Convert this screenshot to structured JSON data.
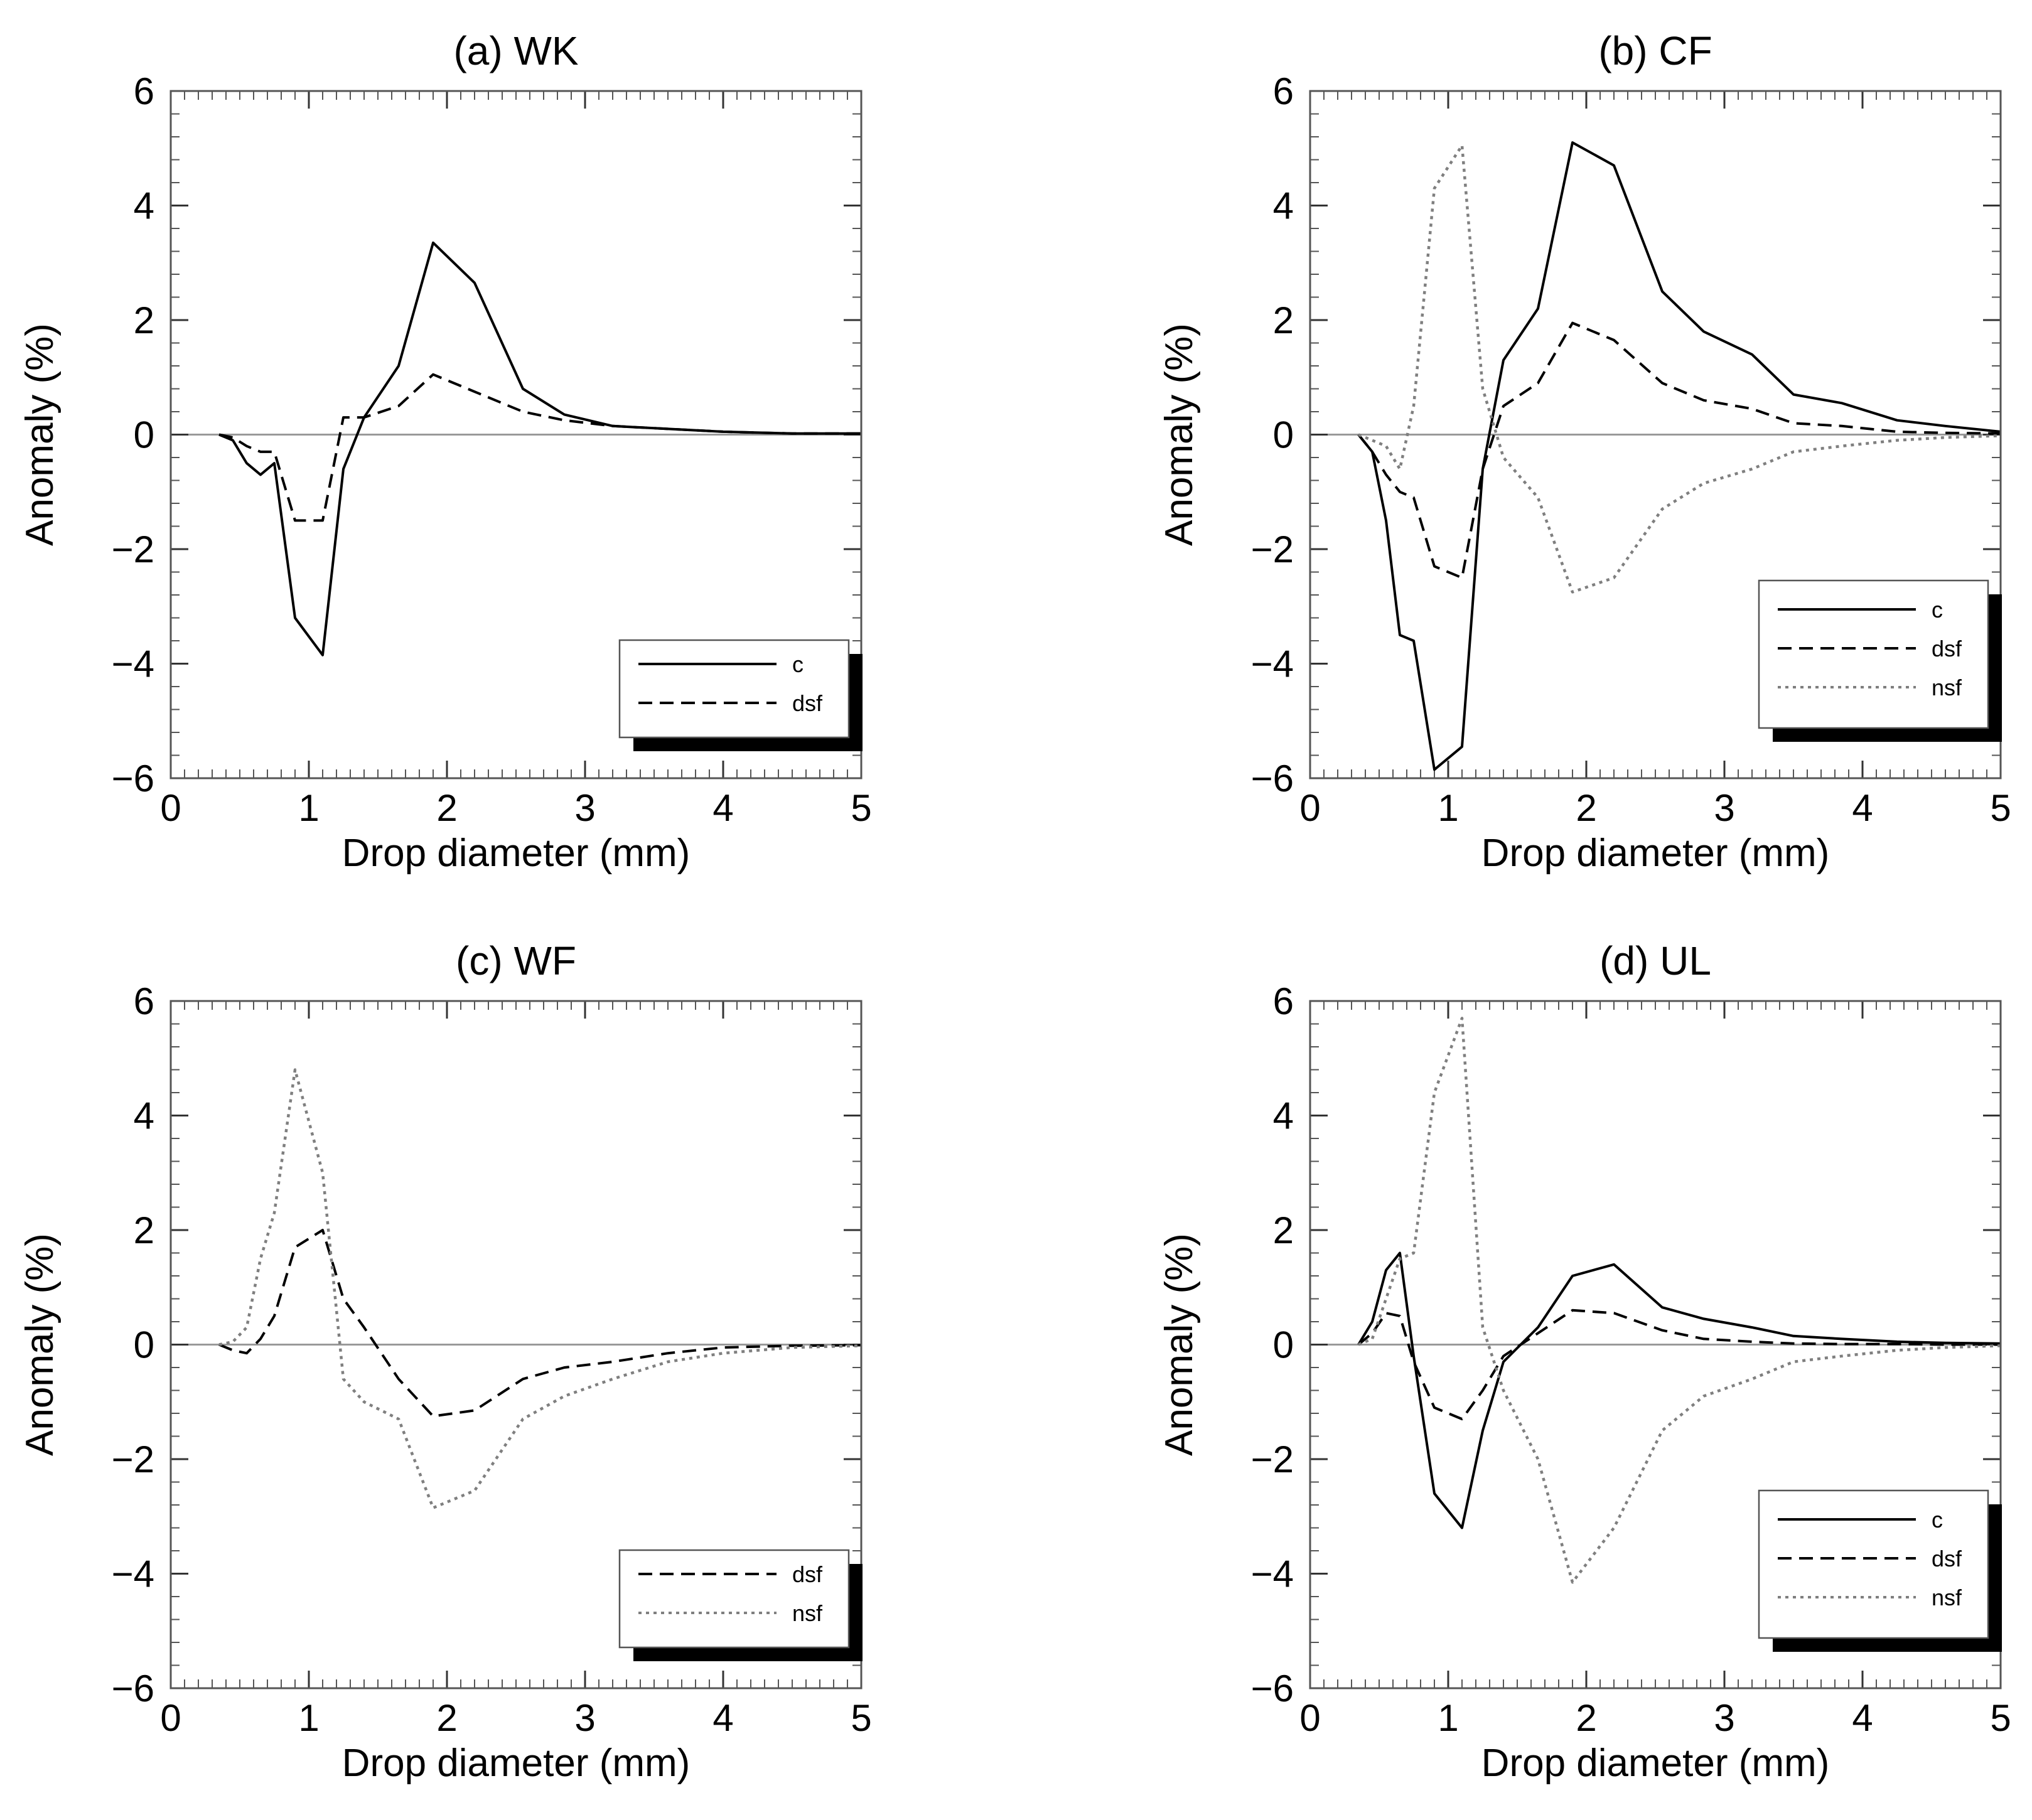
{
  "chart_data": [
    {
      "type": "line",
      "title": "(a) WK",
      "xlabel": "Drop diameter (mm)",
      "ylabel": "Anomaly (%)",
      "xlim": [
        0,
        5
      ],
      "ylim": [
        -6,
        6
      ],
      "xticks": [
        "0",
        "1",
        "2",
        "3",
        "4",
        "5"
      ],
      "yticks": [
        "−6",
        "−4",
        "−2",
        "0",
        "2",
        "4",
        "6"
      ],
      "legend_position": "lower-right",
      "series": [
        {
          "name": "c",
          "style": "solid",
          "color": "#000000",
          "x": [
            0.35,
            0.45,
            0.55,
            0.65,
            0.75,
            0.9,
            1.1,
            1.25,
            1.4,
            1.65,
            1.9,
            2.2,
            2.55,
            2.85,
            3.2,
            3.6,
            4.0,
            4.5,
            5.0
          ],
          "y": [
            0,
            -0.1,
            -0.5,
            -0.7,
            -0.5,
            -3.2,
            -3.85,
            -0.6,
            0.3,
            1.2,
            3.35,
            2.65,
            0.8,
            0.35,
            0.15,
            0.1,
            0.05,
            0.02,
            0.02
          ]
        },
        {
          "name": "dsf",
          "style": "dashed",
          "color": "#000000",
          "x": [
            0.35,
            0.45,
            0.55,
            0.65,
            0.75,
            0.9,
            1.1,
            1.25,
            1.4,
            1.65,
            1.9,
            2.2,
            2.55,
            2.85,
            3.2,
            3.6,
            4.0,
            4.5,
            5.0
          ],
          "y": [
            0,
            -0.05,
            -0.2,
            -0.3,
            -0.3,
            -1.5,
            -1.5,
            0.3,
            0.3,
            0.5,
            1.05,
            0.75,
            0.4,
            0.25,
            0.15,
            0.1,
            0.05,
            0.02,
            0.02
          ]
        }
      ]
    },
    {
      "type": "line",
      "title": "(b) CF",
      "xlabel": "Drop diameter (mm)",
      "ylabel": "Anomaly (%)",
      "xlim": [
        0,
        5
      ],
      "ylim": [
        -6,
        6
      ],
      "xticks": [
        "0",
        "1",
        "2",
        "3",
        "4",
        "5"
      ],
      "yticks": [
        "−6",
        "−4",
        "−2",
        "0",
        "2",
        "4",
        "6"
      ],
      "legend_position": "lower-right",
      "series": [
        {
          "name": "c",
          "style": "solid",
          "color": "#000000",
          "x": [
            0.35,
            0.45,
            0.55,
            0.65,
            0.75,
            0.9,
            1.1,
            1.25,
            1.4,
            1.65,
            1.9,
            2.2,
            2.55,
            2.85,
            3.2,
            3.5,
            3.85,
            4.25,
            4.6,
            5.0
          ],
          "y": [
            0,
            -0.3,
            -1.5,
            -3.5,
            -3.6,
            -5.85,
            -5.45,
            -0.6,
            1.3,
            2.2,
            5.1,
            4.7,
            2.5,
            1.8,
            1.4,
            0.7,
            0.55,
            0.25,
            0.15,
            0.05
          ]
        },
        {
          "name": "dsf",
          "style": "dashed",
          "color": "#000000",
          "x": [
            0.35,
            0.45,
            0.55,
            0.65,
            0.75,
            0.9,
            1.1,
            1.25,
            1.4,
            1.65,
            1.9,
            2.2,
            2.55,
            2.85,
            3.2,
            3.5,
            3.85,
            4.25,
            4.6,
            5.0
          ],
          "y": [
            0,
            -0.3,
            -0.7,
            -1.0,
            -1.1,
            -2.3,
            -2.5,
            -0.6,
            0.5,
            0.9,
            1.95,
            1.65,
            0.9,
            0.6,
            0.45,
            0.2,
            0.15,
            0.05,
            0.03,
            0.02
          ]
        },
        {
          "name": "nsf",
          "style": "dotted",
          "color": "#7f7f7f",
          "x": [
            0.35,
            0.45,
            0.55,
            0.65,
            0.75,
            0.9,
            1.1,
            1.25,
            1.4,
            1.65,
            1.9,
            2.2,
            2.55,
            2.85,
            3.2,
            3.5,
            3.85,
            4.25,
            4.6,
            5.0
          ],
          "y": [
            0,
            -0.1,
            -0.2,
            -0.6,
            0.5,
            4.3,
            5.05,
            0.8,
            -0.4,
            -1.1,
            -2.75,
            -2.5,
            -1.3,
            -0.85,
            -0.6,
            -0.3,
            -0.2,
            -0.1,
            -0.05,
            -0.02
          ]
        }
      ]
    },
    {
      "type": "line",
      "title": "(c) WF",
      "xlabel": "Drop diameter (mm)",
      "ylabel": "Anomaly (%)",
      "xlim": [
        0,
        5
      ],
      "ylim": [
        -6,
        6
      ],
      "xticks": [
        "0",
        "1",
        "2",
        "3",
        "4",
        "5"
      ],
      "yticks": [
        "−6",
        "−4",
        "−2",
        "0",
        "2",
        "4",
        "6"
      ],
      "legend_position": "lower-right",
      "series": [
        {
          "name": "dsf",
          "style": "dashed",
          "color": "#000000",
          "x": [
            0.35,
            0.45,
            0.55,
            0.65,
            0.75,
            0.9,
            1.1,
            1.25,
            1.4,
            1.65,
            1.9,
            2.2,
            2.55,
            2.85,
            3.2,
            3.6,
            4.0,
            4.5,
            5.0
          ],
          "y": [
            0,
            -0.1,
            -0.15,
            0.1,
            0.5,
            1.7,
            2.0,
            0.8,
            0.3,
            -0.6,
            -1.25,
            -1.15,
            -0.6,
            -0.4,
            -0.3,
            -0.15,
            -0.05,
            -0.02,
            -0.01
          ]
        },
        {
          "name": "nsf",
          "style": "dotted",
          "color": "#7f7f7f",
          "x": [
            0.35,
            0.45,
            0.55,
            0.65,
            0.75,
            0.9,
            1.1,
            1.25,
            1.4,
            1.65,
            1.9,
            2.2,
            2.55,
            2.85,
            3.2,
            3.6,
            4.0,
            4.5,
            5.0
          ],
          "y": [
            0,
            0.05,
            0.3,
            1.5,
            2.3,
            4.8,
            3.0,
            -0.6,
            -1.0,
            -1.3,
            -2.85,
            -2.55,
            -1.3,
            -0.9,
            -0.6,
            -0.3,
            -0.15,
            -0.05,
            -0.02
          ]
        }
      ]
    },
    {
      "type": "line",
      "title": "(d) UL",
      "xlabel": "Drop diameter (mm)",
      "ylabel": "Anomaly (%)",
      "xlim": [
        0,
        5
      ],
      "ylim": [
        -6,
        6
      ],
      "xticks": [
        "0",
        "1",
        "2",
        "3",
        "4",
        "5"
      ],
      "yticks": [
        "−6",
        "−4",
        "−2",
        "0",
        "2",
        "4",
        "6"
      ],
      "legend_position": "lower-right",
      "series": [
        {
          "name": "c",
          "style": "solid",
          "color": "#000000",
          "x": [
            0.35,
            0.45,
            0.55,
            0.65,
            0.75,
            0.9,
            1.1,
            1.25,
            1.4,
            1.65,
            1.9,
            2.2,
            2.55,
            2.85,
            3.2,
            3.5,
            3.85,
            4.25,
            4.6,
            5.0
          ],
          "y": [
            0,
            0.4,
            1.3,
            1.6,
            -0.2,
            -2.6,
            -3.2,
            -1.5,
            -0.3,
            0.3,
            1.2,
            1.4,
            0.65,
            0.45,
            0.3,
            0.15,
            0.1,
            0.05,
            0.03,
            0.02
          ]
        },
        {
          "name": "dsf",
          "style": "dashed",
          "color": "#000000",
          "x": [
            0.35,
            0.45,
            0.55,
            0.65,
            0.75,
            0.9,
            1.1,
            1.25,
            1.4,
            1.65,
            1.9,
            2.2,
            2.55,
            2.85,
            3.2,
            3.5,
            3.85,
            4.25,
            4.6,
            5.0
          ],
          "y": [
            0,
            0.2,
            0.55,
            0.5,
            -0.3,
            -1.1,
            -1.3,
            -0.8,
            -0.2,
            0.2,
            0.6,
            0.55,
            0.25,
            0.1,
            0.05,
            0.02,
            0.01,
            0.01,
            0,
            0
          ]
        },
        {
          "name": "nsf",
          "style": "dotted",
          "color": "#7f7f7f",
          "x": [
            0.35,
            0.45,
            0.55,
            0.65,
            0.75,
            0.9,
            1.1,
            1.25,
            1.4,
            1.65,
            1.9,
            2.2,
            2.55,
            2.85,
            3.2,
            3.5,
            3.85,
            4.25,
            4.6,
            5.0
          ],
          "y": [
            0,
            0.1,
            0.8,
            1.5,
            1.6,
            4.4,
            5.7,
            0.3,
            -0.8,
            -2.0,
            -4.15,
            -3.2,
            -1.5,
            -0.9,
            -0.6,
            -0.3,
            -0.2,
            -0.1,
            -0.05,
            -0.02
          ]
        }
      ]
    }
  ]
}
